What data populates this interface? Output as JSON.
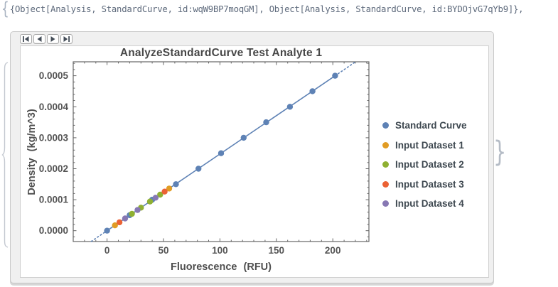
{
  "output_line": {
    "open_brace": "{",
    "text": "{Object[Analysis, StandardCurve, id:wqW9BP7moqGM], Object[Analysis, StandardCurve, id:BYDOjvG7qYb9]},",
    "close_brace": "}"
  },
  "toolbar": {
    "buttons": [
      {
        "id": "first-slide",
        "icon": "skip-to-first-icon"
      },
      {
        "id": "previous-slide",
        "icon": "step-backward-icon"
      },
      {
        "id": "next-slide",
        "icon": "step-forward-icon"
      },
      {
        "id": "last-slide",
        "icon": "skip-to-last-icon"
      }
    ]
  },
  "chart_data": {
    "type": "scatter",
    "title": "AnalyzeStandardCurve Test Analyte 1",
    "xlabel": "Fluorescence (RFU)",
    "ylabel": "Density (kg/m^3)",
    "xlim": [
      -30,
      232
    ],
    "ylim": [
      -3.5e-05,
      0.000545
    ],
    "grid": false,
    "legend_position": "right",
    "frame_color": "#666666",
    "x_ticks": {
      "values": [
        0,
        50,
        100,
        150,
        200
      ],
      "labels": [
        "0",
        "50",
        "100",
        "150",
        "200"
      ],
      "minor_step": 10
    },
    "y_ticks": {
      "values": [
        0,
        0.0001,
        0.0002,
        0.0003,
        0.0004,
        0.0005
      ],
      "labels": [
        "0.0000",
        "0.0001",
        "0.0002",
        "0.0003",
        "0.0004",
        "0.0005"
      ],
      "minor_step": 2e-05
    },
    "fit_line": {
      "slope": 2.475e-06,
      "intercept": 0,
      "color": "#5e82b5",
      "solid_x": [
        0,
        202
      ],
      "dashed_x": [
        [
          -14,
          0
        ],
        [
          202,
          220
        ]
      ]
    },
    "series": [
      {
        "name": "Standard Curve",
        "color": "#5e82b5",
        "x": [
          0,
          20,
          40,
          61,
          81,
          101,
          121,
          141,
          162,
          182,
          202
        ],
        "y": [
          0.0,
          5e-05,
          0.0001,
          0.00015,
          0.0002,
          0.00025,
          0.0003,
          0.00035,
          0.0004,
          0.00045,
          0.0005
        ]
      },
      {
        "name": "Input Dataset 1",
        "color": "#e19c24",
        "x": [
          7,
          55
        ],
        "y": [
          1.73e-05,
          0.0001361
        ]
      },
      {
        "name": "Input Dataset 2",
        "color": "#8fb032",
        "x": [
          22,
          30,
          38,
          47
        ],
        "y": [
          5.45e-05,
          7.43e-05,
          9.41e-05,
          0.0001163
        ]
      },
      {
        "name": "Input Dataset 3",
        "color": "#eb6235",
        "x": [
          11,
          51
        ],
        "y": [
          2.72e-05,
          0.0001262
        ]
      },
      {
        "name": "Input Dataset 4",
        "color": "#8778b3",
        "x": [
          16,
          27,
          43
        ],
        "y": [
          3.96e-05,
          6.68e-05,
          0.0001064
        ]
      }
    ]
  }
}
